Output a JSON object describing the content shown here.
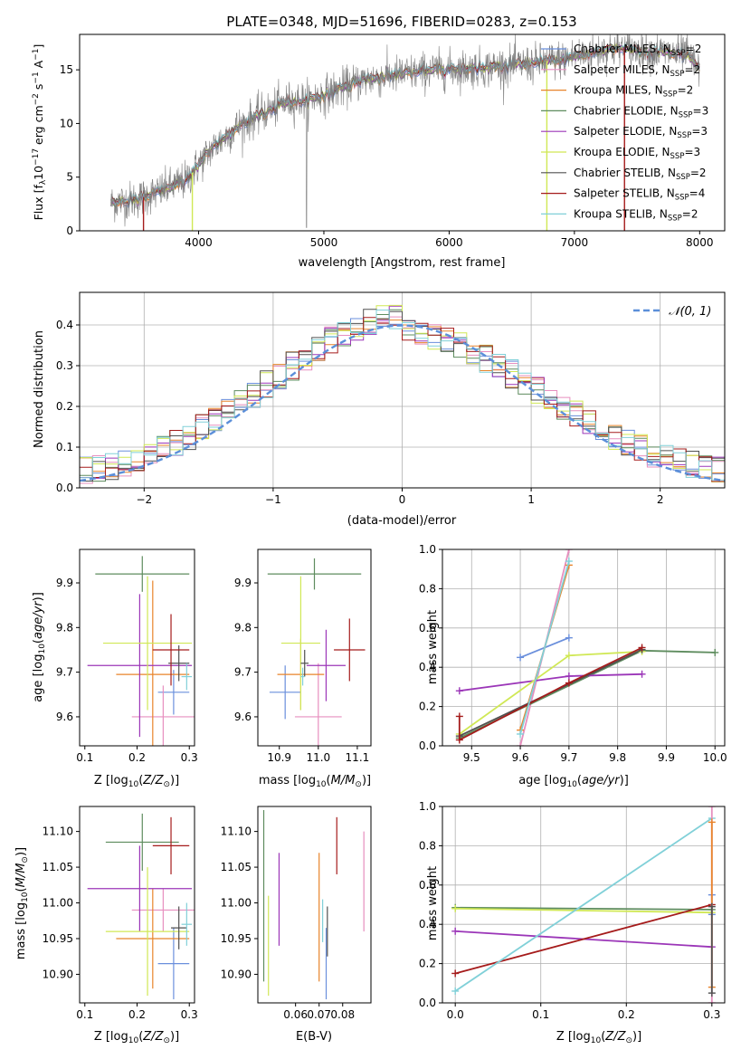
{
  "colors": {
    "Chabrier MILES": "#6a8fdc",
    "Salpeter MILES": "#e78fbf",
    "Kroupa MILES": "#e8842a",
    "Chabrier ELODIE": "#5e8c5e",
    "Salpeter ELODIE": "#9b36b8",
    "Kroupa ELODIE": "#d0e855",
    "Chabrier STELIB": "#505050",
    "Salpeter STELIB": "#a51b1b",
    "Kroupa STELIB": "#80d0d8",
    "data": "#808080",
    "gauss": "#5b8fd9"
  },
  "chart_data": [
    {
      "id": "spectrum",
      "type": "line",
      "title": "PLATE=0348, MJD=51696, FIBERID=0283, z=0.153",
      "xlabel": "wavelength [Angstrom, rest frame]",
      "ylabel": "Flux [fλ10⁻¹⁷ erg cm⁻² s⁻¹ A⁻¹]",
      "xlim": [
        3050,
        8200
      ],
      "ylim": [
        0,
        18.3
      ],
      "xticks": [
        4000,
        5000,
        6000,
        7000,
        8000
      ],
      "yticks": [
        0,
        5,
        10,
        15
      ],
      "legend_position": "upper-right",
      "legend": [
        "Chabrier MILES, N_SSP=2",
        "Salpeter MILES, N_SSP=2",
        "Kroupa MILES, N_SSP=2",
        "Chabrier ELODIE, N_SSP=3",
        "Salpeter ELODIE, N_SSP=3",
        "Kroupa ELODIE, N_SSP=3",
        "Chabrier STELIB, N_SSP=2",
        "Salpeter STELIB, N_SSP=4",
        "Kroupa STELIB, N_SSP=2"
      ],
      "continuum": [
        [
          3300,
          2.6
        ],
        [
          3500,
          2.9
        ],
        [
          3700,
          3.7
        ],
        [
          3900,
          4.7
        ],
        [
          4100,
          7.6
        ],
        [
          4300,
          9.6
        ],
        [
          4500,
          10.9
        ],
        [
          4700,
          12.0
        ],
        [
          4900,
          12.3
        ],
        [
          5100,
          13.1
        ],
        [
          5300,
          14.0
        ],
        [
          5500,
          14.4
        ],
        [
          5700,
          14.7
        ],
        [
          5900,
          15.0
        ],
        [
          6100,
          15.1
        ],
        [
          6300,
          15.2
        ],
        [
          6500,
          15.4
        ],
        [
          6700,
          15.6
        ],
        [
          6900,
          16.0
        ],
        [
          7100,
          16.5
        ],
        [
          7300,
          17.0
        ],
        [
          7500,
          16.8
        ],
        [
          7700,
          16.6
        ],
        [
          7900,
          16.4
        ],
        [
          8000,
          15.0
        ]
      ]
    },
    {
      "id": "residuals",
      "type": "histogram",
      "xlabel": "(data-model)/error",
      "ylabel": "Normed distribution",
      "xlim": [
        -2.5,
        2.5
      ],
      "ylim": [
        0,
        0.48
      ],
      "xticks": [
        -2,
        -1,
        0,
        1,
        2
      ],
      "yticks": [
        0.0,
        0.1,
        0.2,
        0.3,
        0.4
      ],
      "grid": true,
      "legend_position": "upper-right",
      "reference": "𝒩(0, 1)"
    },
    {
      "id": "age-vs-Z",
      "type": "errorbar",
      "xlabel": "Z [log10(Z/Z☉)]",
      "ylabel": "age  [log10(age/yr)]",
      "xlim": [
        0.09,
        0.31
      ],
      "ylim": [
        9.535,
        9.975
      ],
      "xticks": [
        0.1,
        0.2,
        0.3
      ],
      "yticks": [
        9.6,
        9.7,
        9.8,
        9.9
      ],
      "points": [
        {
          "model": "Chabrier MILES",
          "x": 0.27,
          "y": 9.655,
          "xerr": 0.03,
          "yerr": 0.05
        },
        {
          "model": "Salpeter MILES",
          "x": 0.25,
          "y": 9.6,
          "xerr": 0.06,
          "yerr": 0.07
        },
        {
          "model": "Kroupa MILES",
          "x": 0.23,
          "y": 9.695,
          "xerr": 0.07,
          "yerr": 0.21
        },
        {
          "model": "Chabrier ELODIE",
          "x": 0.21,
          "y": 9.92,
          "xerr": 0.09,
          "yerr": 0.04
        },
        {
          "model": "Salpeter ELODIE",
          "x": 0.205,
          "y": 9.715,
          "xerr": 0.1,
          "yerr": 0.16
        },
        {
          "model": "Kroupa ELODIE",
          "x": 0.22,
          "y": 9.765,
          "xerr": 0.085,
          "yerr": 0.15
        },
        {
          "model": "Chabrier STELIB",
          "x": 0.28,
          "y": 9.72,
          "xerr": 0.02,
          "yerr": 0.04
        },
        {
          "model": "Salpeter STELIB",
          "x": 0.265,
          "y": 9.75,
          "xerr": 0.035,
          "yerr": 0.08
        },
        {
          "model": "Kroupa STELIB",
          "x": 0.295,
          "y": 9.69,
          "xerr": 0.01,
          "yerr": 0.03
        }
      ]
    },
    {
      "id": "age-vs-mass",
      "type": "errorbar",
      "xlabel": "mass [log10(M/M☉)]",
      "ylabel": "",
      "xlim": [
        10.845,
        11.135
      ],
      "ylim": [
        9.535,
        9.975
      ],
      "xticks": [
        10.9,
        11.0,
        11.1
      ],
      "yticks": [
        9.6,
        9.7,
        9.8,
        9.9
      ],
      "points": [
        {
          "model": "Chabrier MILES",
          "x": 10.915,
          "y": 9.655,
          "xerr": 0.04,
          "yerr": 0.06
        },
        {
          "model": "Salpeter MILES",
          "x": 11.0,
          "y": 9.6,
          "xerr": 0.06,
          "yerr": 0.12
        },
        {
          "model": "Kroupa MILES",
          "x": 10.955,
          "y": 9.695,
          "xerr": 0.06,
          "yerr": 0.08
        },
        {
          "model": "Chabrier ELODIE",
          "x": 10.99,
          "y": 9.92,
          "xerr": 0.12,
          "yerr": 0.035
        },
        {
          "model": "Salpeter ELODIE",
          "x": 11.02,
          "y": 9.715,
          "xerr": 0.05,
          "yerr": 0.08
        },
        {
          "model": "Kroupa ELODIE",
          "x": 10.955,
          "y": 9.765,
          "xerr": 0.05,
          "yerr": 0.15
        },
        {
          "model": "Chabrier STELIB",
          "x": 10.965,
          "y": 9.72,
          "xerr": 0.01,
          "yerr": 0.03
        },
        {
          "model": "Salpeter STELIB",
          "x": 11.08,
          "y": 9.75,
          "xerr": 0.04,
          "yerr": 0.07
        },
        {
          "model": "Kroupa STELIB",
          "x": 10.96,
          "y": 9.69,
          "xerr": 0.005,
          "yerr": 0.02
        }
      ]
    },
    {
      "id": "weight-vs-age",
      "type": "line",
      "xlabel": "age  [log10(age/yr)]",
      "ylabel": "mass weight",
      "xlim": [
        9.44,
        10.02
      ],
      "ylim": [
        0,
        1
      ],
      "xticks": [
        9.5,
        9.6,
        9.7,
        9.8,
        9.9,
        10.0
      ],
      "yticks": [
        0.0,
        0.2,
        0.4,
        0.6,
        0.8,
        1.0
      ],
      "grid": true,
      "series": [
        {
          "model": "Chabrier MILES",
          "x": [
            9.6,
            9.7
          ],
          "y": [
            0.45,
            0.55
          ]
        },
        {
          "model": "Salpeter MILES",
          "x": [
            9.6,
            9.7
          ],
          "y": [
            0.0,
            1.0
          ]
        },
        {
          "model": "Kroupa MILES",
          "x": [
            9.6,
            9.7
          ],
          "y": [
            0.08,
            0.92
          ]
        },
        {
          "model": "Chabrier ELODIE",
          "x": [
            9.475,
            9.85,
            10.0
          ],
          "y": [
            0.04,
            0.485,
            0.475
          ]
        },
        {
          "model": "Salpeter ELODIE",
          "x": [
            9.475,
            9.7,
            9.85
          ],
          "y": [
            0.28,
            0.355,
            0.365
          ]
        },
        {
          "model": "Kroupa ELODIE",
          "x": [
            9.475,
            9.7,
            9.85
          ],
          "y": [
            0.06,
            0.46,
            0.48
          ]
        },
        {
          "model": "Chabrier STELIB",
          "x": [
            9.475,
            9.85
          ],
          "y": [
            0.05,
            0.49
          ]
        },
        {
          "model": "Salpeter STELIB",
          "x": [
            9.475,
            9.475,
            9.7,
            9.85
          ],
          "y": [
            0.15,
            0.03,
            0.32,
            0.5
          ]
        },
        {
          "model": "Kroupa STELIB",
          "x": [
            9.6,
            9.7
          ],
          "y": [
            0.06,
            0.94
          ]
        }
      ]
    },
    {
      "id": "mass-vs-Z",
      "type": "errorbar",
      "xlabel": "Z [log10(Z/Z☉)]",
      "ylabel": "mass [log10(M/M☉)]",
      "xlim": [
        0.09,
        0.31
      ],
      "ylim": [
        10.86,
        11.135
      ],
      "xticks": [
        0.1,
        0.2,
        0.3
      ],
      "yticks": [
        10.9,
        10.95,
        11.0,
        11.05,
        11.1
      ],
      "points": [
        {
          "model": "Chabrier MILES",
          "x": 0.27,
          "y": 10.915,
          "xerr": 0.03,
          "yerr": 0.05
        },
        {
          "model": "Salpeter MILES",
          "x": 0.25,
          "y": 10.99,
          "xerr": 0.06,
          "yerr": 0.03
        },
        {
          "model": "Kroupa MILES",
          "x": 0.23,
          "y": 10.95,
          "xerr": 0.07,
          "yerr": 0.07
        },
        {
          "model": "Chabrier ELODIE",
          "x": 0.21,
          "y": 11.085,
          "xerr": 0.07,
          "yerr": 0.04
        },
        {
          "model": "Salpeter ELODIE",
          "x": 0.205,
          "y": 11.02,
          "xerr": 0.1,
          "yerr": 0.06
        },
        {
          "model": "Kroupa ELODIE",
          "x": 0.22,
          "y": 10.96,
          "xerr": 0.08,
          "yerr": 0.09
        },
        {
          "model": "Chabrier STELIB",
          "x": 0.28,
          "y": 10.965,
          "xerr": 0.015,
          "yerr": 0.03
        },
        {
          "model": "Salpeter STELIB",
          "x": 0.265,
          "y": 11.08,
          "xerr": 0.035,
          "yerr": 0.04
        },
        {
          "model": "Kroupa STELIB",
          "x": 0.295,
          "y": 10.97,
          "xerr": 0.01,
          "yerr": 0.03
        }
      ]
    },
    {
      "id": "mass-vs-EBV",
      "type": "errorbar",
      "xlabel": "E(B-V)",
      "ylabel": "",
      "xlim": [
        0.044,
        0.092
      ],
      "ylim": [
        10.86,
        11.135
      ],
      "xticks": [
        0.06,
        0.07,
        0.08
      ],
      "yticks": [
        10.9,
        10.95,
        11.0,
        11.05,
        11.1
      ],
      "points": [
        {
          "model": "Chabrier MILES",
          "x": 0.073,
          "y": 10.915,
          "xerr": 0,
          "yerr": 0.05
        },
        {
          "model": "Salpeter MILES",
          "x": 0.089,
          "y": 11.03,
          "xerr": 0,
          "yerr": 0.07
        },
        {
          "model": "Kroupa MILES",
          "x": 0.07,
          "y": 10.98,
          "xerr": 0,
          "yerr": 0.09
        },
        {
          "model": "Chabrier ELODIE",
          "x": 0.0465,
          "y": 11.01,
          "xerr": 0,
          "yerr": 0.12
        },
        {
          "model": "Salpeter ELODIE",
          "x": 0.053,
          "y": 11.005,
          "xerr": 0,
          "yerr": 0.065
        },
        {
          "model": "Kroupa ELODIE",
          "x": 0.0485,
          "y": 10.94,
          "xerr": 0,
          "yerr": 0.07
        },
        {
          "model": "Chabrier STELIB",
          "x": 0.0735,
          "y": 10.96,
          "xerr": 0,
          "yerr": 0.035
        },
        {
          "model": "Salpeter STELIB",
          "x": 0.0775,
          "y": 11.08,
          "xerr": 0,
          "yerr": 0.04
        },
        {
          "model": "Kroupa STELIB",
          "x": 0.0715,
          "y": 10.975,
          "xerr": 0,
          "yerr": 0.03
        }
      ]
    },
    {
      "id": "weight-vs-Z",
      "type": "line",
      "xlabel": "Z [log10(Z/Z☉)]",
      "ylabel": "mass weight",
      "xlim": [
        -0.015,
        0.315
      ],
      "ylim": [
        0,
        1
      ],
      "xticks": [
        0.0,
        0.1,
        0.2,
        0.3
      ],
      "yticks": [
        0.0,
        0.2,
        0.4,
        0.6,
        0.8,
        1.0
      ],
      "grid": true,
      "series": [
        {
          "model": "Chabrier ELODIE",
          "x": [
            0.0,
            0.3
          ],
          "y": [
            0.485,
            0.475
          ]
        },
        {
          "model": "Kroupa ELODIE",
          "x": [
            0.0,
            0.3
          ],
          "y": [
            0.48,
            0.46
          ]
        },
        {
          "model": "Salpeter ELODIE",
          "x": [
            0.0,
            0.3
          ],
          "y": [
            0.365,
            0.285
          ]
        },
        {
          "model": "Salpeter STELIB",
          "x": [
            0.0,
            0.3
          ],
          "y": [
            0.15,
            0.5
          ]
        },
        {
          "model": "Kroupa STELIB",
          "x": [
            0.0,
            0.3
          ],
          "y": [
            0.06,
            0.94
          ]
        },
        {
          "model": "Chabrier MILES",
          "x": [
            0.3,
            0.3
          ],
          "y": [
            0.45,
            0.55
          ]
        },
        {
          "model": "Salpeter MILES",
          "x": [
            0.3,
            0.3
          ],
          "y": [
            0.0,
            1.0
          ]
        },
        {
          "model": "Kroupa MILES",
          "x": [
            0.3,
            0.3
          ],
          "y": [
            0.08,
            0.92
          ]
        },
        {
          "model": "Chabrier STELIB",
          "x": [
            0.3,
            0.3
          ],
          "y": [
            0.05,
            0.49
          ]
        }
      ]
    }
  ]
}
